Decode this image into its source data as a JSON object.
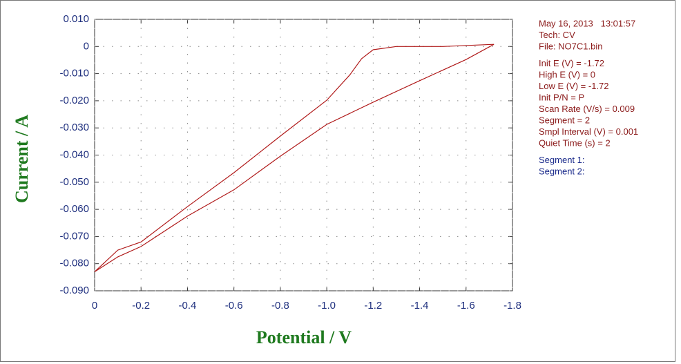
{
  "chart_data": {
    "type": "line",
    "xlabel": "Potential / V",
    "ylabel": "Current / A",
    "xlim": [
      0,
      -1.8
    ],
    "ylim": [
      -0.09,
      0.01
    ],
    "xticks": [
      0,
      -0.2,
      -0.4,
      -0.6,
      -0.8,
      {
        "value": -1,
        "label": "-1.0"
      },
      -1.2,
      -1.4,
      -1.6,
      -1.8
    ],
    "yticks": [
      {
        "value": 0.01,
        "label": "0.010"
      },
      0,
      {
        "value": -0.01,
        "label": "-0.010"
      },
      {
        "value": -0.02,
        "label": "-0.020"
      },
      {
        "value": -0.03,
        "label": "-0.030"
      },
      {
        "value": -0.04,
        "label": "-0.040"
      },
      {
        "value": -0.05,
        "label": "-0.050"
      },
      {
        "value": -0.06,
        "label": "-0.060"
      },
      {
        "value": -0.07,
        "label": "-0.070"
      },
      {
        "value": -0.08,
        "label": "-0.080"
      },
      {
        "value": -0.09,
        "label": "-0.090"
      }
    ],
    "grid": true,
    "axis_label_color": "#1f7a1f",
    "x": [
      0,
      -0.1,
      -0.2,
      -0.4,
      -0.6,
      -0.8,
      -1.0,
      -1.1,
      -1.15,
      -1.2,
      -1.3,
      -1.5,
      -1.72,
      -1.6,
      -1.4,
      -1.2,
      -1.0,
      -0.8,
      -0.6,
      -0.4,
      -0.2,
      -0.1,
      0
    ],
    "series": [
      {
        "color": "#b01a1a",
        "values": [
          -0.083,
          -0.075,
          -0.072,
          -0.059,
          -0.0465,
          -0.033,
          -0.0198,
          -0.0104,
          -0.0045,
          -0.0012,
          0,
          0,
          0.0008,
          -0.0048,
          -0.0126,
          -0.0205,
          -0.0287,
          -0.0404,
          -0.0528,
          -0.0625,
          -0.0737,
          -0.0775,
          -0.083
        ]
      }
    ],
    "info_groups": [
      {
        "color": "#8b1a1a",
        "lines": [
          "May 16, 2013   13:01:57",
          "Tech: CV",
          "File: NO7C1.bin"
        ]
      },
      {
        "color": "#8b1a1a",
        "lines": [
          "Init E (V) = -1.72",
          "High E (V) = 0",
          "Low E (V) = -1.72",
          "Init P/N = P",
          "Scan Rate (V/s) = 0.009",
          "Segment = 2",
          "Smpl Interval (V) = 0.001",
          "Quiet Time (s) = 2"
        ]
      },
      {
        "color": "#1a2a8b",
        "lines": [
          "Segment 1:",
          "Segment 2:"
        ]
      }
    ]
  }
}
